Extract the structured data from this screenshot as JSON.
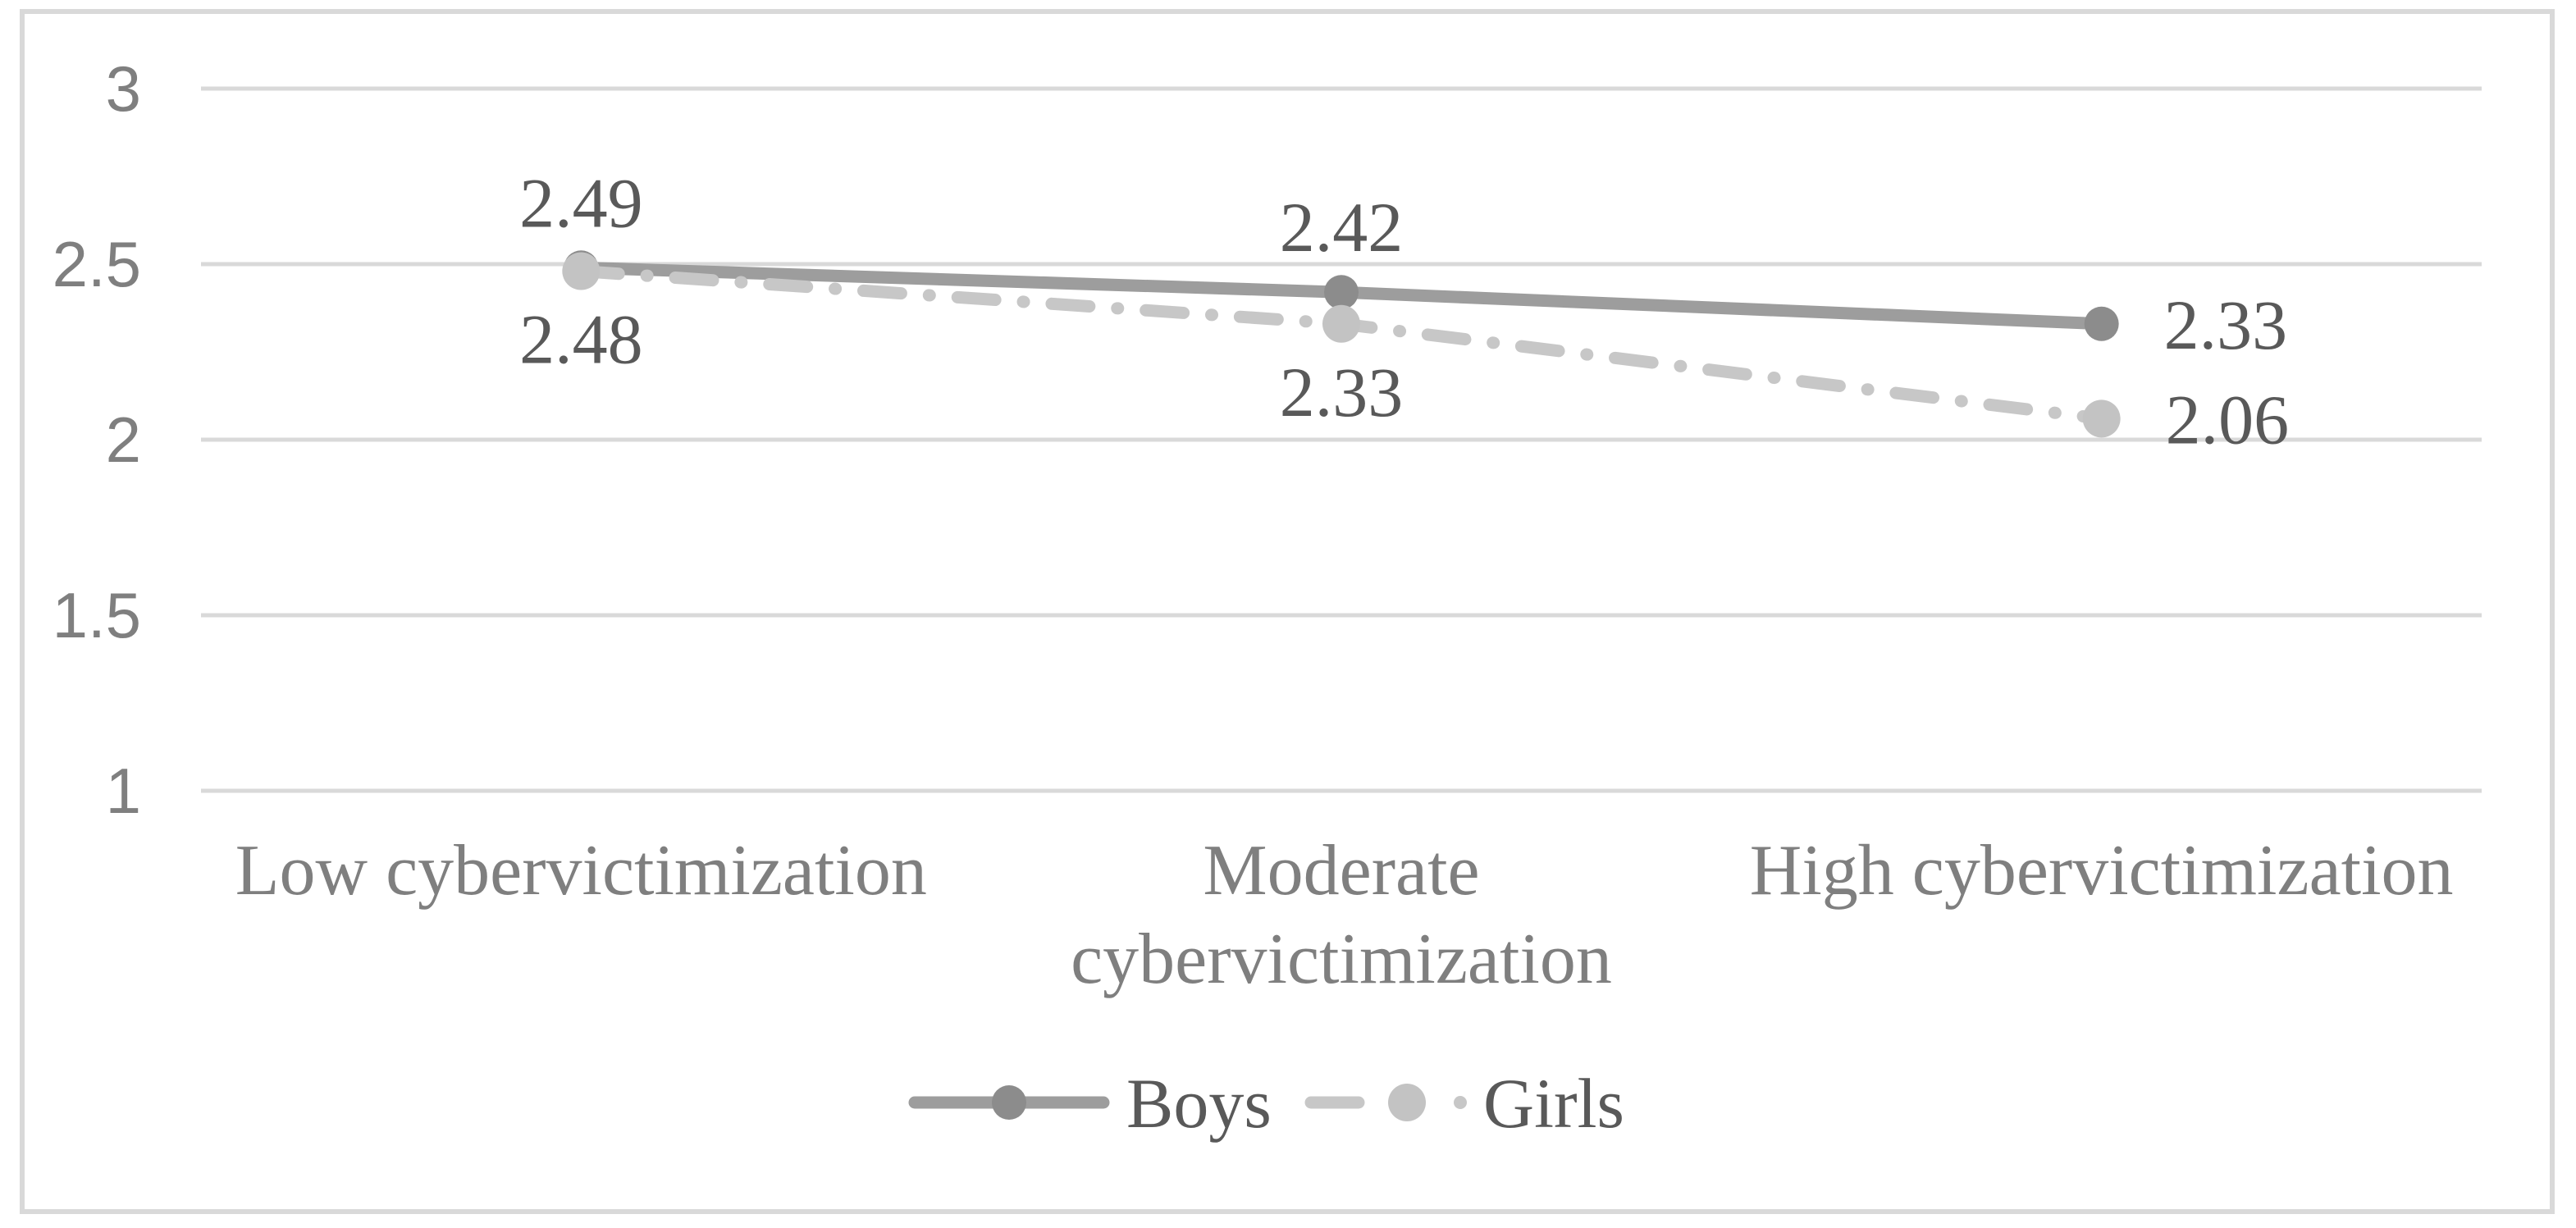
{
  "chart_data": {
    "type": "line",
    "title": "",
    "xlabel": "",
    "ylabel": "",
    "categories": [
      "Low cybervictimization",
      "Moderate cybervictimization",
      "High cybervictimization"
    ],
    "category_lines": [
      [
        "Low cybervictimization"
      ],
      [
        "Moderate",
        "cybervictimization"
      ],
      [
        "High cybervictimization"
      ]
    ],
    "series": [
      {
        "name": "Boys",
        "values": [
          2.49,
          2.42,
          2.33
        ],
        "labels": [
          "2.49",
          "2.42",
          "2.33"
        ],
        "label_positions": [
          "above",
          "above",
          "right"
        ],
        "style": "solid",
        "line_color": "#9d9d9d",
        "marker_color": "#8c8c8c",
        "marker_radius": 21
      },
      {
        "name": "Girls",
        "values": [
          2.48,
          2.33,
          2.06
        ],
        "labels": [
          "2.48",
          "2.33",
          "2.06"
        ],
        "label_positions": [
          "below",
          "below",
          "right"
        ],
        "style": "dash-dot",
        "line_color": "#c7c7c7",
        "marker_color": "#c3c3c3",
        "marker_radius": 23
      }
    ],
    "yticks": [
      3,
      2.5,
      2,
      1.5,
      1
    ],
    "ytick_labels": [
      "3",
      "2.5",
      "2",
      "1.5",
      "1"
    ],
    "ylim": [
      1,
      3
    ],
    "grid": true,
    "legend_position": "bottom",
    "colors": {
      "background": "#ffffff",
      "chart_border": "#d9d9d9",
      "gridline": "#d9d9d9",
      "axis_text": "#7f7f7f",
      "category_text": "#7f7f7f",
      "data_label_text": "#595959",
      "legend_text": "#595959"
    }
  }
}
